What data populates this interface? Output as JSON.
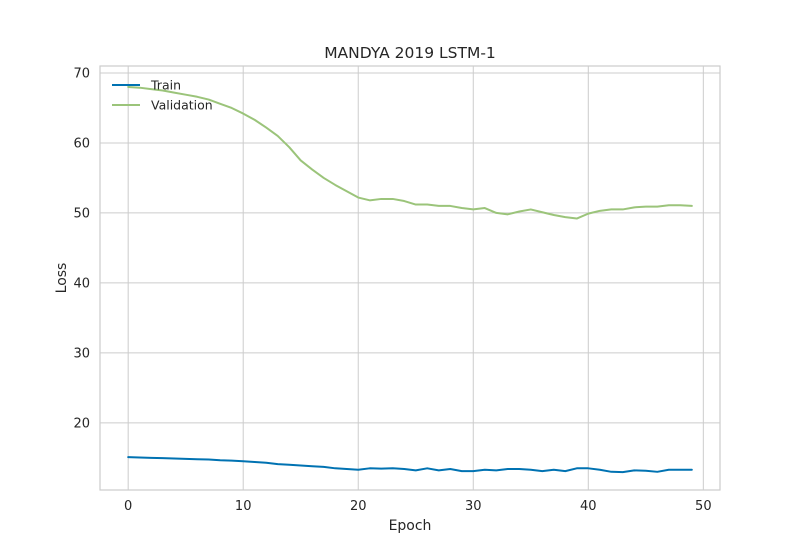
{
  "chart_data": {
    "type": "line",
    "title": "MANDYA 2019 LSTM-1",
    "xlabel": "Epoch",
    "ylabel": "Loss",
    "xlim": [
      -2.45,
      51.45
    ],
    "ylim": [
      10.4,
      71
    ],
    "xticks": [
      0,
      10,
      20,
      30,
      40,
      50
    ],
    "yticks": [
      20,
      30,
      40,
      50,
      60,
      70
    ],
    "grid": true,
    "legend_position": "top-left",
    "series": [
      {
        "name": "Train",
        "color": "#0072b2",
        "values": [
          15.1,
          15.05,
          15.0,
          14.95,
          14.9,
          14.85,
          14.8,
          14.75,
          14.65,
          14.6,
          14.5,
          14.4,
          14.3,
          14.1,
          14.0,
          13.9,
          13.8,
          13.7,
          13.5,
          13.4,
          13.3,
          13.5,
          13.45,
          13.5,
          13.4,
          13.2,
          13.5,
          13.2,
          13.4,
          13.1,
          13.1,
          13.3,
          13.2,
          13.4,
          13.4,
          13.3,
          13.1,
          13.3,
          13.1,
          13.5,
          13.5,
          13.3,
          13.0,
          12.95,
          13.2,
          13.15,
          13.0,
          13.3,
          13.3,
          13.3
        ]
      },
      {
        "name": "Validation",
        "color": "#9bc47a",
        "values": [
          68.0,
          67.9,
          67.7,
          67.5,
          67.2,
          66.9,
          66.6,
          66.2,
          65.6,
          65.0,
          64.2,
          63.3,
          62.2,
          61.0,
          59.4,
          57.5,
          56.2,
          55.0,
          54.0,
          53.1,
          52.2,
          51.8,
          52.0,
          52.0,
          51.7,
          51.2,
          51.2,
          51.0,
          51.0,
          50.7,
          50.5,
          50.7,
          50.0,
          49.8,
          50.2,
          50.5,
          50.1,
          49.7,
          49.4,
          49.2,
          49.9,
          50.3,
          50.5,
          50.5,
          50.8,
          50.9,
          50.9,
          51.1,
          51.1,
          51.0
        ]
      }
    ]
  }
}
